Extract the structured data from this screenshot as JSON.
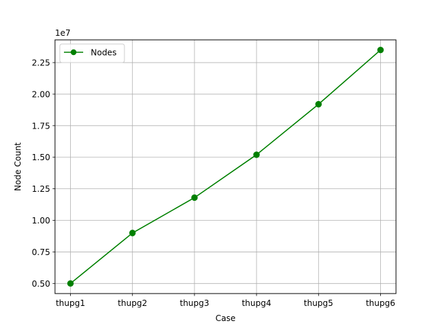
{
  "chart_data": {
    "type": "line",
    "title": "",
    "xlabel": "Case",
    "ylabel": "Node Count",
    "y_offset_label": "1e7",
    "categories": [
      "thupg1",
      "thupg2",
      "thupg3",
      "thupg4",
      "thupg5",
      "thupg6"
    ],
    "series": [
      {
        "name": "Nodes",
        "color": "#008000",
        "marker": "circle",
        "values": [
          5000000,
          9000000,
          11800000,
          15200000,
          19200000,
          23500000
        ]
      }
    ],
    "ylim": [
      4200000,
      24300000
    ],
    "yticks": [
      5000000,
      7500000,
      10000000,
      12500000,
      15000000,
      17500000,
      20000000,
      22500000
    ],
    "ytick_labels": [
      "0.50",
      "0.75",
      "1.00",
      "1.25",
      "1.50",
      "1.75",
      "2.00",
      "2.25"
    ],
    "grid": true,
    "legend_position": "top-left"
  }
}
